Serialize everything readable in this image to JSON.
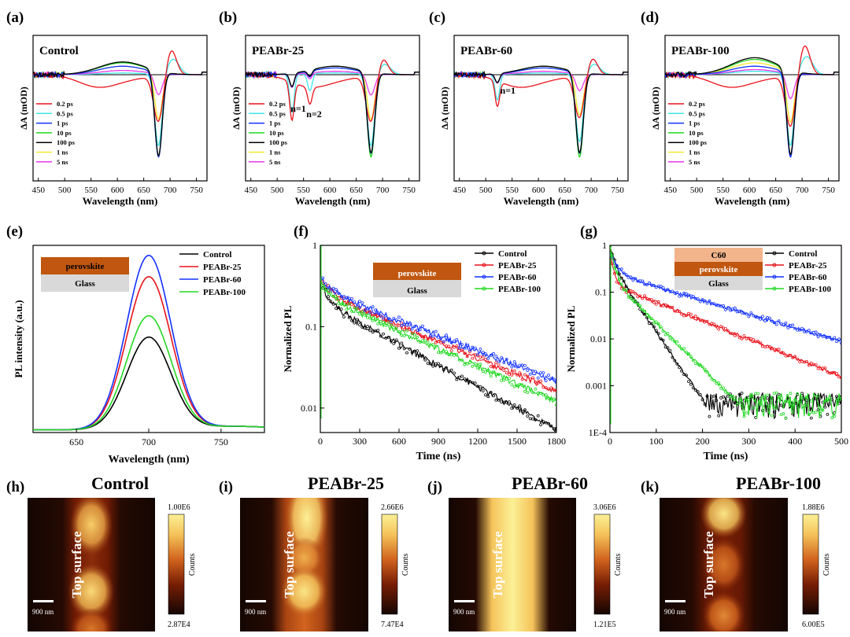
{
  "figure": {
    "colors": {
      "red": "#e8121b",
      "cyan": "#3de6e6",
      "blue": "#1432ff",
      "green": "#22d822",
      "black": "#000000",
      "yellow": "#f2e82a",
      "magenta": "#e83ae8",
      "perovskite": "#c0560f",
      "glass": "#d9d9d9",
      "c60": "#f2b48a"
    },
    "panel_letters": [
      "(a)",
      "(b)",
      "(c)",
      "(d)",
      "(e)",
      "(f)",
      "(g)",
      "(h)",
      "(i)",
      "(j)",
      "(k)"
    ]
  },
  "chart_data": [
    {
      "id": "a",
      "type": "line",
      "title": "Control",
      "xlabel": "Wavelength (nm)",
      "ylabel": "ΔA (mOD)",
      "xlim": [
        440,
        770
      ],
      "xticks": [
        "450",
        "500",
        "550",
        "600",
        "650",
        "700",
        "750"
      ],
      "legend": [
        "0.2 ps",
        "0.5 ps",
        "1 ps",
        "10 ps",
        "100 ps",
        "1 ns",
        "5 ns"
      ],
      "legend_position": "lower-left",
      "annotations": [],
      "features": {
        "bleach_center_nm": 678,
        "bleach_depth": [
          -0.55,
          -0.85,
          -1.0,
          -1.0,
          -1.0,
          -0.55,
          -0.25
        ],
        "broad_amp": [
          -0.05,
          0.02,
          0.1,
          0.14,
          0.15,
          0.1,
          0.05
        ],
        "red_pa_nm": 702,
        "red_pa_amp": 0.3,
        "low_n": []
      }
    },
    {
      "id": "b",
      "type": "line",
      "title": "PEABr-25",
      "xlabel": "Wavelength (nm)",
      "ylabel": "ΔA (mOD)",
      "xlim": [
        440,
        770
      ],
      "xticks": [
        "450",
        "500",
        "550",
        "600",
        "650",
        "700",
        "750"
      ],
      "legend": [
        "0.2 ps",
        "0.5 ps",
        "1 ps",
        "10 ps",
        "100 ps",
        "1 ns",
        "5 ns"
      ],
      "legend_position": "lower-left",
      "annotations": [
        "n=1",
        "n=2"
      ],
      "features": {
        "bleach_center_nm": 678,
        "bleach_depth": [
          -0.55,
          -0.85,
          -0.95,
          -1.0,
          -0.95,
          -0.55,
          -0.25
        ],
        "broad_amp": [
          -0.05,
          0.02,
          0.08,
          0.1,
          0.1,
          0.08,
          0.04
        ],
        "red_pa_nm": 700,
        "red_pa_amp": 0.2,
        "low_n": [
          [
            528,
            -0.45
          ],
          [
            562,
            -0.2
          ]
        ]
      }
    },
    {
      "id": "c",
      "type": "line",
      "title": "PEABr-60",
      "xlabel": "Wavelength (nm)",
      "ylabel": "ΔA (mOD)",
      "xlim": [
        440,
        770
      ],
      "xticks": [
        "450",
        "500",
        "550",
        "600",
        "650",
        "700",
        "750"
      ],
      "legend": [],
      "legend_position": "",
      "annotations": [
        "n=1"
      ],
      "features": {
        "bleach_center_nm": 678,
        "bleach_depth": [
          -0.5,
          -0.8,
          -0.95,
          -1.0,
          -0.95,
          -0.5,
          -0.2
        ],
        "broad_amp": [
          -0.05,
          0.02,
          0.08,
          0.1,
          0.1,
          0.08,
          0.04
        ],
        "red_pa_nm": 702,
        "red_pa_amp": 0.2,
        "low_n": [
          [
            522,
            -0.3
          ]
        ]
      }
    },
    {
      "id": "d",
      "type": "line",
      "title": "PEABr-100",
      "xlabel": "Wavelength (nm)",
      "ylabel": "ΔA (mOD)",
      "xlim": [
        440,
        770
      ],
      "xticks": [
        "450",
        "500",
        "550",
        "600",
        "650",
        "700",
        "750"
      ],
      "legend": [
        "0.2 ps",
        "0.5 ps",
        "1 ps",
        "10 ps",
        "100 ps",
        "1 ns",
        "5 ns"
      ],
      "legend_position": "lower-left",
      "annotations": [],
      "features": {
        "bleach_center_nm": 678,
        "bleach_depth": [
          -0.6,
          -0.85,
          -1.0,
          -1.0,
          -1.0,
          -0.6,
          -0.3
        ],
        "broad_amp": [
          -0.05,
          0.04,
          0.1,
          0.18,
          0.2,
          0.14,
          0.06
        ],
        "red_pa_nm": 705,
        "red_pa_amp": 0.35,
        "low_n": []
      }
    },
    {
      "id": "e",
      "type": "line",
      "title": "",
      "xlabel": "Wavelength (nm)",
      "ylabel": "PL intensity (a.u.)",
      "xlim": [
        620,
        780
      ],
      "xticks": [
        "650",
        "700",
        "750"
      ],
      "series": [
        {
          "name": "Control",
          "peak": 0.52,
          "center": 700,
          "fwhm": 36
        },
        {
          "name": "PEABr-25",
          "peak": 0.86,
          "center": 700,
          "fwhm": 36
        },
        {
          "name": "PEABr-60",
          "peak": 0.98,
          "center": 700,
          "fwhm": 36
        },
        {
          "name": "PEABr-100",
          "peak": 0.64,
          "center": 700,
          "fwhm": 36
        }
      ],
      "inset": [
        "perovskite",
        "Glass"
      ],
      "legend_position": "top-right"
    },
    {
      "id": "f",
      "type": "line",
      "title": "",
      "xlabel": "Time (ns)",
      "ylabel": "Normalized PL",
      "xlim": [
        0,
        1800
      ],
      "xticks": [
        "0",
        "300",
        "600",
        "900",
        "1200",
        "1500",
        "1800"
      ],
      "ylim_log": [
        0.005,
        1
      ],
      "yticks": [
        "0.01",
        "0.1",
        "1"
      ],
      "series": [
        {
          "name": "Control",
          "a1": 0.15,
          "t1": 60,
          "a2": 0.2,
          "t2": 500
        },
        {
          "name": "PEABr-25",
          "a1": 0.12,
          "t1": 80,
          "a2": 0.26,
          "t2": 650
        },
        {
          "name": "PEABr-60",
          "a1": 0.12,
          "t1": 80,
          "a2": 0.28,
          "t2": 700
        },
        {
          "name": "PEABr-100",
          "a1": 0.12,
          "t1": 80,
          "a2": 0.24,
          "t2": 600
        }
      ],
      "inset": [
        "perovskite",
        "Glass"
      ],
      "legend_position": "top-right"
    },
    {
      "id": "g",
      "type": "line",
      "title": "",
      "xlabel": "Time (ns)",
      "ylabel": "Normalized PL",
      "xlim": [
        0,
        500
      ],
      "xticks": [
        "0",
        "100",
        "200",
        "300",
        "400",
        "500"
      ],
      "ylim_log": [
        0.0001,
        1
      ],
      "yticks": [
        "1E-4",
        "0.001",
        "0.01",
        "0.1",
        "1"
      ],
      "series": [
        {
          "name": "Control",
          "a1": 0.6,
          "t1": 8,
          "a2": 0.4,
          "t2": 30
        },
        {
          "name": "PEABr-25",
          "a1": 0.6,
          "t1": 6,
          "a2": 0.15,
          "t2": 110
        },
        {
          "name": "PEABr-60",
          "a1": 0.4,
          "t1": 15,
          "a2": 0.25,
          "t2": 150
        },
        {
          "name": "PEABr-100",
          "a1": 0.7,
          "t1": 8,
          "a2": 0.2,
          "t2": 45
        }
      ],
      "inset": [
        "C60",
        "perovskite",
        "Glass"
      ],
      "legend_position": "top-right"
    },
    {
      "id": "h",
      "type": "heatmap",
      "title": "Control",
      "side_label": "Top surface",
      "scale_label": "900 nm",
      "colorbar": {
        "max": "1.00E6",
        "min": "2.87E4",
        "label": "Counts"
      },
      "blobs": [
        [
          0.5,
          0.2,
          0.13,
          0.18,
          0.85
        ],
        [
          0.5,
          0.7,
          0.14,
          0.16,
          0.9
        ],
        [
          0.5,
          0.98,
          0.13,
          0.12,
          0.6
        ]
      ],
      "band_width": 0.25,
      "band_level": 0.35
    },
    {
      "id": "i",
      "type": "heatmap",
      "title": "PEABr-25",
      "side_label": "Top surface",
      "scale_label": "900 nm",
      "colorbar": {
        "max": "2.66E6",
        "min": "7.47E4",
        "label": "Counts"
      },
      "blobs": [
        [
          0.52,
          0.15,
          0.13,
          0.25,
          1.0
        ],
        [
          0.5,
          0.45,
          0.12,
          0.12,
          0.75
        ],
        [
          0.5,
          0.7,
          0.14,
          0.15,
          0.95
        ]
      ],
      "band_width": 0.28,
      "band_level": 0.55
    },
    {
      "id": "j",
      "type": "heatmap",
      "title": "PEABr-60",
      "side_label": "Top surface",
      "scale_label": "900 nm",
      "colorbar": {
        "max": "3.06E6",
        "min": "1.21E5",
        "label": "Counts"
      },
      "blobs": [],
      "band_width": 0.32,
      "band_level": 1.0
    },
    {
      "id": "k",
      "type": "heatmap",
      "title": "PEABr-100",
      "side_label": "Top surface",
      "scale_label": "900 nm",
      "colorbar": {
        "max": "1.88E6",
        "min": "6.00E5",
        "label": "Counts"
      },
      "blobs": [
        [
          0.5,
          0.12,
          0.14,
          0.14,
          0.95
        ],
        [
          0.5,
          0.5,
          0.13,
          0.16,
          0.6
        ],
        [
          0.5,
          0.88,
          0.13,
          0.14,
          0.65
        ]
      ],
      "band_width": 0.27,
      "band_level": 0.3
    }
  ]
}
